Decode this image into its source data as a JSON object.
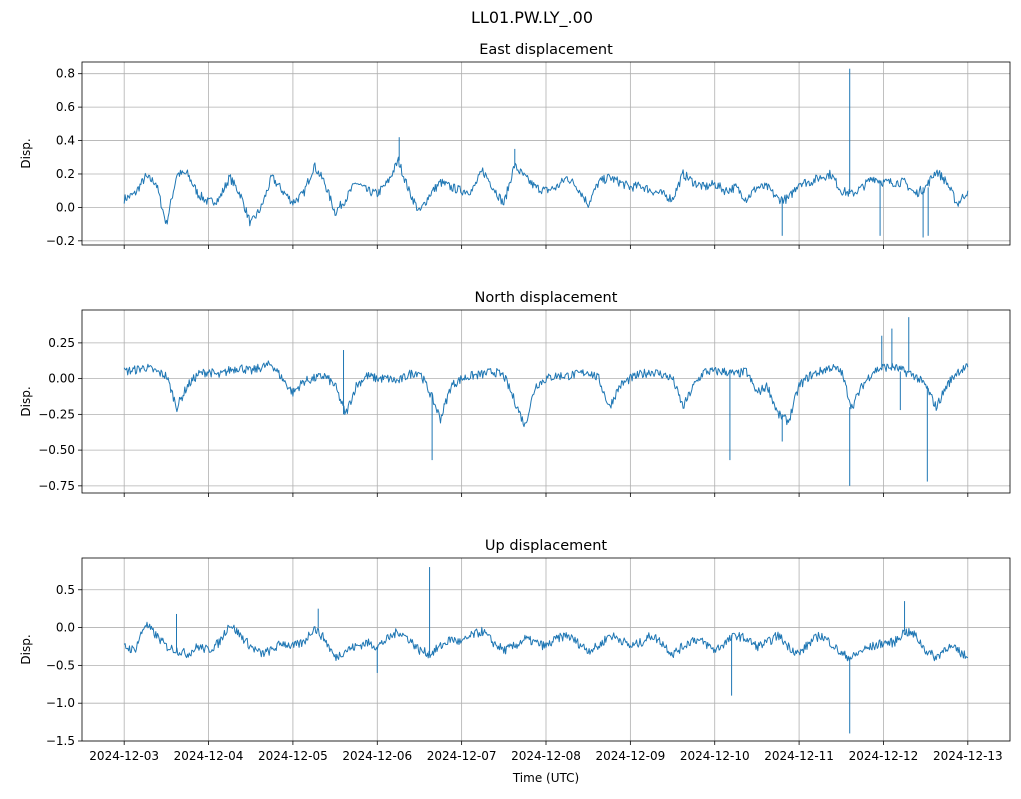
{
  "suptitle": "LL01.PW.LY_.00",
  "chart_data": [
    {
      "type": "line",
      "title": "East displacement",
      "ylabel": "Disp.",
      "xlabel": "",
      "x_start_day": 0,
      "x_step_days": 0.125,
      "ylim": [
        -0.225,
        0.87
      ],
      "yticks": [
        -0.2,
        0.0,
        0.2,
        0.4,
        0.6,
        0.8
      ],
      "ytick_labels": [
        "−0.2",
        "0.0",
        "0.2",
        "0.4",
        "0.6",
        "0.8"
      ],
      "values": [
        0.05,
        0.08,
        0.18,
        0.15,
        -0.1,
        0.2,
        0.2,
        0.08,
        0.03,
        0.05,
        0.18,
        0.08,
        -0.1,
        0.0,
        0.18,
        0.1,
        0.03,
        0.08,
        0.25,
        0.15,
        -0.03,
        0.05,
        0.15,
        0.1,
        0.08,
        0.15,
        0.28,
        0.1,
        -0.03,
        0.08,
        0.15,
        0.12,
        0.1,
        0.1,
        0.22,
        0.12,
        0.02,
        0.25,
        0.18,
        0.12,
        0.1,
        0.12,
        0.18,
        0.12,
        0.02,
        0.15,
        0.18,
        0.15,
        0.12,
        0.13,
        0.1,
        0.08,
        0.05,
        0.2,
        0.15,
        0.12,
        0.14,
        0.1,
        0.12,
        0.05,
        0.12,
        0.12,
        0.05,
        0.05,
        0.15,
        0.15,
        0.18,
        0.2,
        0.1,
        0.08,
        0.12,
        0.18,
        0.15,
        0.15,
        0.15,
        0.08,
        0.12,
        0.22,
        0.15,
        0.02,
        0.1
      ],
      "spikes": [
        [
          3.26,
          0.42
        ],
        [
          4.63,
          0.35
        ],
        [
          7.8,
          -0.17
        ],
        [
          8.6,
          0.83
        ],
        [
          8.96,
          -0.17
        ],
        [
          9.47,
          -0.18
        ],
        [
          9.53,
          -0.17
        ]
      ]
    },
    {
      "type": "line",
      "title": "North displacement",
      "ylabel": "Disp.",
      "xlabel": "",
      "x_start_day": 0,
      "x_step_days": 0.125,
      "ylim": [
        -0.8,
        0.48
      ],
      "yticks": [
        -0.75,
        -0.5,
        -0.25,
        0.0,
        0.25
      ],
      "ytick_labels": [
        "−0.75",
        "−0.50",
        "−0.25",
        "0.00",
        "0.25"
      ],
      "values": [
        0.05,
        0.06,
        0.08,
        0.05,
        0.02,
        -0.2,
        -0.05,
        0.03,
        0.05,
        0.02,
        0.06,
        0.08,
        0.05,
        0.08,
        0.1,
        0.0,
        -0.1,
        -0.02,
        0.0,
        0.02,
        -0.05,
        -0.25,
        -0.05,
        0.02,
        0.0,
        0.0,
        -0.02,
        0.03,
        0.05,
        -0.1,
        -0.28,
        -0.05,
        0.0,
        0.02,
        0.03,
        0.05,
        0.02,
        -0.15,
        -0.33,
        -0.05,
        0.0,
        0.02,
        0.02,
        0.03,
        0.05,
        0.0,
        -0.2,
        -0.05,
        0.0,
        0.03,
        0.05,
        0.03,
        0.0,
        -0.2,
        -0.05,
        0.05,
        0.05,
        0.05,
        0.03,
        0.05,
        -0.1,
        -0.05,
        -0.25,
        -0.3,
        -0.05,
        0.02,
        0.05,
        0.08,
        0.05,
        -0.2,
        -0.05,
        0.05,
        0.08,
        0.08,
        0.05,
        0.02,
        -0.05,
        -0.2,
        -0.05,
        0.05,
        0.08
      ],
      "spikes": [
        [
          2.6,
          0.2
        ],
        [
          3.65,
          -0.57
        ],
        [
          7.18,
          -0.57
        ],
        [
          7.8,
          -0.44
        ],
        [
          8.6,
          -0.75
        ],
        [
          8.98,
          0.3
        ],
        [
          9.1,
          0.35
        ],
        [
          9.2,
          -0.22
        ],
        [
          9.3,
          0.43
        ],
        [
          9.52,
          -0.72
        ]
      ]
    },
    {
      "type": "line",
      "title": "Up displacement",
      "ylabel": "Disp.",
      "xlabel": "Time (UTC)",
      "x_start_day": 0,
      "x_step_days": 0.125,
      "ylim": [
        -1.5,
        0.92
      ],
      "yticks": [
        -1.5,
        -1.0,
        -0.5,
        0.0,
        0.5
      ],
      "ytick_labels": [
        "−1.5",
        "−1.0",
        "−0.5",
        "0.0",
        "0.5"
      ],
      "values": [
        -0.25,
        -0.3,
        0.05,
        -0.1,
        -0.25,
        -0.3,
        -0.35,
        -0.25,
        -0.3,
        -0.2,
        0.05,
        -0.1,
        -0.25,
        -0.35,
        -0.3,
        -0.2,
        -0.25,
        -0.2,
        0.0,
        -0.15,
        -0.4,
        -0.3,
        -0.25,
        -0.2,
        -0.25,
        -0.15,
        -0.05,
        -0.15,
        -0.3,
        -0.35,
        -0.25,
        -0.15,
        -0.2,
        -0.1,
        -0.05,
        -0.2,
        -0.3,
        -0.25,
        -0.15,
        -0.2,
        -0.25,
        -0.15,
        -0.1,
        -0.2,
        -0.3,
        -0.25,
        -0.1,
        -0.15,
        -0.25,
        -0.2,
        -0.1,
        -0.2,
        -0.35,
        -0.25,
        -0.15,
        -0.2,
        -0.3,
        -0.2,
        -0.1,
        -0.15,
        -0.25,
        -0.2,
        -0.1,
        -0.25,
        -0.35,
        -0.2,
        -0.1,
        -0.2,
        -0.35,
        -0.4,
        -0.3,
        -0.25,
        -0.2,
        -0.2,
        -0.05,
        -0.1,
        -0.3,
        -0.4,
        -0.25,
        -0.3,
        -0.4
      ],
      "spikes": [
        [
          0.62,
          0.18
        ],
        [
          2.3,
          0.25
        ],
        [
          3.0,
          -0.6
        ],
        [
          3.62,
          0.8
        ],
        [
          7.2,
          -0.9
        ],
        [
          8.6,
          -1.4
        ],
        [
          9.25,
          0.35
        ]
      ]
    }
  ],
  "xaxis": {
    "xlim_days": [
      -0.5,
      10.5
    ],
    "tick_days": [
      0,
      1,
      2,
      3,
      4,
      5,
      6,
      7,
      8,
      9,
      10
    ],
    "tick_labels": [
      "2024-12-03",
      "2024-12-04",
      "2024-12-05",
      "2024-12-06",
      "2024-12-07",
      "2024-12-08",
      "2024-12-09",
      "2024-12-10",
      "2024-12-11",
      "2024-12-12",
      "2024-12-13"
    ]
  },
  "line_color": "#1f77b4",
  "grid_color": "#b0b0b0"
}
